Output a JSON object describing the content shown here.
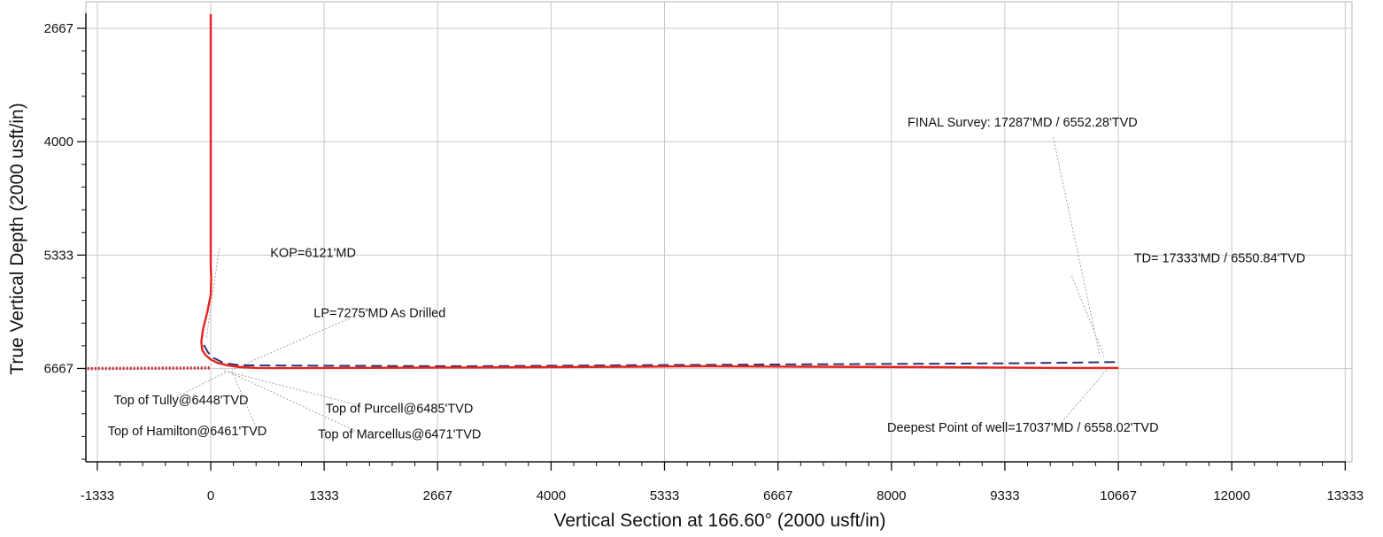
{
  "chart_data": {
    "type": "line",
    "xlabel": "Vertical Section at 166.60° (2000 usft/in)",
    "ylabel": "True Vertical Depth (2000 usft/in)",
    "xlim": [
      -1333,
      13333
    ],
    "ylim": [
      2667,
      7833
    ],
    "y_inverted": true,
    "grid": true,
    "x_ticks": [
      -1333,
      0,
      1333,
      2667,
      4000,
      5333,
      6667,
      8000,
      9333,
      10667,
      12000,
      13333
    ],
    "y_ticks": [
      2667,
      4000,
      5333,
      6667
    ],
    "series": [
      {
        "style": "solid",
        "color": "#e8231e",
        "x": [
          0,
          0,
          0,
          0,
          0,
          0,
          5,
          0,
          -40,
          -90,
          -110,
          -100,
          -60,
          0,
          80,
          200,
          350,
          550,
          800,
          1500,
          3000,
          5000,
          5800,
          7000,
          8500,
          10000,
          10667
        ],
        "y": [
          2500,
          3500,
          4500,
          5000,
          5250,
          5450,
          5600,
          5800,
          6000,
          6200,
          6350,
          6450,
          6510,
          6560,
          6600,
          6630,
          6650,
          6660,
          6662,
          6660,
          6655,
          6645,
          6640,
          6645,
          6650,
          6660,
          6660
        ]
      },
      {
        "style": "dashed",
        "color": "#2c3575",
        "x": [
          -80,
          -30,
          30,
          150,
          350,
          3000,
          5333,
          7500,
          9500,
          10667
        ],
        "y": [
          6390,
          6480,
          6540,
          6600,
          6630,
          6640,
          6625,
          6615,
          6605,
          6590
        ]
      },
      {
        "style": "dotted",
        "color": "#c62838",
        "x": [
          -1450,
          0
        ],
        "y": [
          6667,
          6660
        ]
      }
    ],
    "annotations": [
      {
        "text": "KOP=6121'MD",
        "x": 700,
        "y": 5355
      },
      {
        "text": "LP=7275'MD As Drilled",
        "x": 1210,
        "y": 6065
      },
      {
        "text": "Top of Tully@6448'TVD",
        "x": -1140,
        "y": 7085
      },
      {
        "text": "Top of Hamilton@6461'TVD",
        "x": -1210,
        "y": 7450
      },
      {
        "text": "Top of Purcell@6485'TVD",
        "x": 1350,
        "y": 7185
      },
      {
        "text": "Top of Marcellus@6471'TVD",
        "x": 1260,
        "y": 7490
      },
      {
        "text": "FINAL Survey: 17287'MD / 6552.28'TVD",
        "x": 8190,
        "y": 3820
      },
      {
        "text": "TD= 17333'MD / 6550.84'TVD",
        "x": 10850,
        "y": 5420
      },
      {
        "text": "Deepest Point of well=17037'MD / 6558.02'TVD",
        "x": 7950,
        "y": 7410
      }
    ],
    "leader_lines": [
      {
        "from": [
          100,
          5250
        ],
        "to": [
          -50,
          6300
        ]
      },
      {
        "from": [
          1900,
          5960
        ],
        "to": [
          250,
          6680
        ]
      },
      {
        "from": [
          -400,
          7000
        ],
        "to": [
          200,
          6700
        ]
      },
      {
        "from": [
          550,
          7400
        ],
        "to": [
          250,
          6700
        ]
      },
      {
        "from": [
          1750,
          7100
        ],
        "to": [
          150,
          6690
        ]
      },
      {
        "from": [
          1700,
          7400
        ],
        "to": [
          200,
          6700
        ]
      },
      {
        "from": [
          9900,
          3950
        ],
        "to": [
          10450,
          6520
        ]
      },
      {
        "from": [
          10120,
          5580
        ],
        "to": [
          10500,
          6520
        ]
      },
      {
        "from": [
          10000,
          7300
        ],
        "to": [
          10550,
          6660
        ]
      }
    ]
  }
}
